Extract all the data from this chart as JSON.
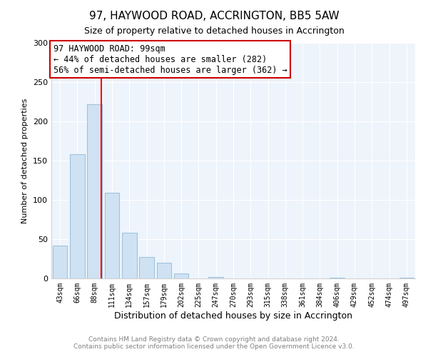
{
  "title": "97, HAYWOOD ROAD, ACCRINGTON, BB5 5AW",
  "subtitle": "Size of property relative to detached houses in Accrington",
  "xlabel": "Distribution of detached houses by size in Accrington",
  "ylabel": "Number of detached properties",
  "bar_labels": [
    "43sqm",
    "66sqm",
    "88sqm",
    "111sqm",
    "134sqm",
    "157sqm",
    "179sqm",
    "202sqm",
    "225sqm",
    "247sqm",
    "270sqm",
    "293sqm",
    "315sqm",
    "338sqm",
    "361sqm",
    "384sqm",
    "406sqm",
    "429sqm",
    "452sqm",
    "474sqm",
    "497sqm"
  ],
  "bar_values": [
    42,
    158,
    222,
    109,
    58,
    27,
    20,
    6,
    0,
    2,
    0,
    0,
    0,
    0,
    0,
    0,
    1,
    0,
    0,
    0,
    1
  ],
  "bar_color": "#cfe2f3",
  "bar_edge_color": "#9ec4e0",
  "vline_color": "#ff0000",
  "vline_x_index": 2.4,
  "annotation_title": "97 HAYWOOD ROAD: 99sqm",
  "annotation_line1": "← 44% of detached houses are smaller (282)",
  "annotation_line2": "56% of semi-detached houses are larger (362) →",
  "annotation_box_color": "#ffffff",
  "annotation_box_edge": "#cc0000",
  "footer1": "Contains HM Land Registry data © Crown copyright and database right 2024.",
  "footer2": "Contains public sector information licensed under the Open Government Licence v3.0.",
  "ylim": [
    0,
    300
  ],
  "figsize": [
    6.0,
    5.0
  ],
  "dpi": 100
}
